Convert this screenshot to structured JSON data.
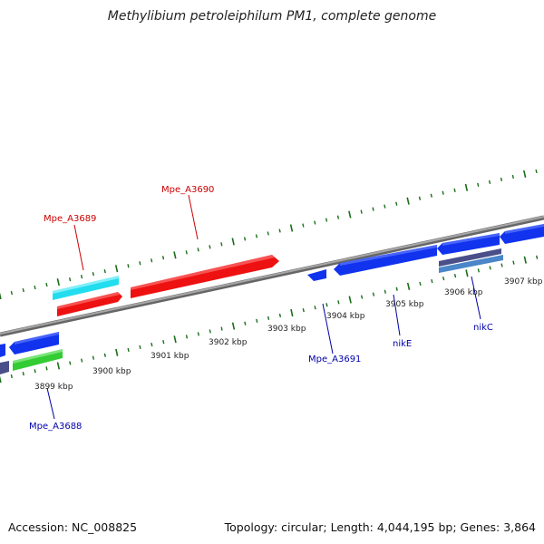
{
  "title": "Methylibium petroleiphilum PM1, complete genome",
  "footer": {
    "accession": "Accession: NC_008825",
    "summary": "Topology: circular; Length: 4,044,195 bp; Genes: 3,864"
  },
  "colors": {
    "forward_label": "#cc0000",
    "reverse_label": "#0000aa",
    "tick": "#1a6e1a",
    "backbone": "#888888",
    "red_gene": "#ee1111",
    "blue_gene": "#1133ee",
    "cyan_gene": "#22ddee",
    "green_gene": "#33cc33",
    "slate_gene": "#4a4f8a",
    "steel_gene": "#4a86c8"
  },
  "scale_labels": [
    "3899 kbp",
    "3900 kbp",
    "3901 kbp",
    "3902 kbp",
    "3903 kbp",
    "3904 kbp",
    "3905 kbp",
    "3906 kbp",
    "3907 kbp"
  ],
  "gene_labels": {
    "forward": [
      "Mpe_A3689",
      "Mpe_A3690"
    ],
    "reverse": [
      "Mpe_A3688",
      "Mpe_A3691",
      "nikE",
      "nikC"
    ]
  }
}
